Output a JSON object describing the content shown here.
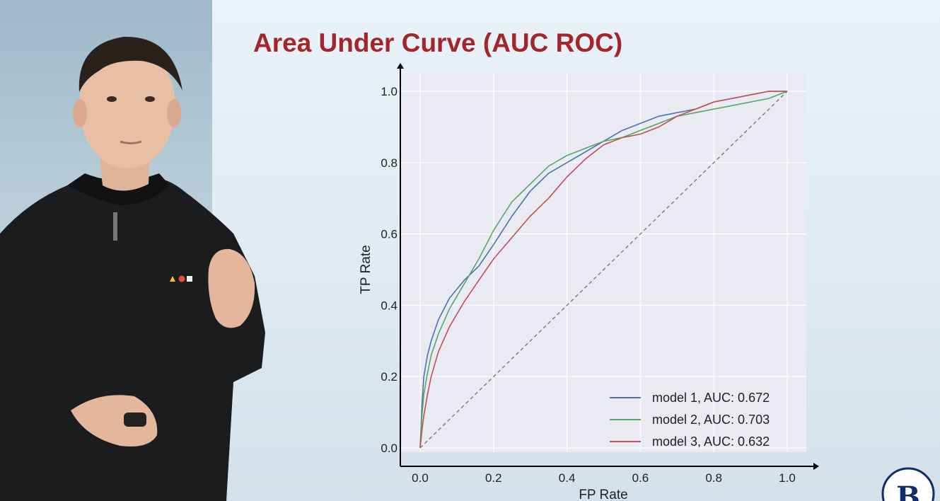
{
  "slide": {
    "title": "Area Under Curve (AUC ROC)"
  },
  "colors": {
    "title": "#a3262b",
    "plot_background": "#eaeaf2",
    "model1": "#4c72b0",
    "model2": "#55a868",
    "model3": "#c44e52",
    "diagonal": "#808080"
  },
  "chart_data": {
    "type": "line",
    "xlabel": "FP Rate",
    "ylabel": "TP Rate",
    "xlim": [
      0,
      1
    ],
    "ylim": [
      0,
      1
    ],
    "xticks": [
      "0.0",
      "0.2",
      "0.4",
      "0.6",
      "0.8",
      "1.0"
    ],
    "yticks": [
      "0.0",
      "0.2",
      "0.4",
      "0.6",
      "0.8",
      "1.0"
    ],
    "grid": true,
    "legend": "bottom-right",
    "series": [
      {
        "name": "model 1, AUC: 0.672",
        "color": "#4c72b0",
        "x": [
          0,
          0.005,
          0.01,
          0.02,
          0.03,
          0.05,
          0.08,
          0.12,
          0.16,
          0.2,
          0.25,
          0.3,
          0.35,
          0.4,
          0.45,
          0.5,
          0.55,
          0.6,
          0.65,
          0.7,
          0.75,
          0.8,
          0.85,
          0.9,
          0.95,
          1.0
        ],
        "y": [
          0,
          0.12,
          0.2,
          0.26,
          0.3,
          0.36,
          0.42,
          0.47,
          0.51,
          0.57,
          0.65,
          0.72,
          0.77,
          0.8,
          0.83,
          0.86,
          0.89,
          0.91,
          0.93,
          0.94,
          0.95,
          0.97,
          0.98,
          0.99,
          1.0,
          1.0
        ]
      },
      {
        "name": "model 2, AUC: 0.703",
        "color": "#55a868",
        "x": [
          0,
          0.005,
          0.01,
          0.02,
          0.03,
          0.05,
          0.08,
          0.12,
          0.16,
          0.2,
          0.25,
          0.3,
          0.35,
          0.4,
          0.45,
          0.5,
          0.55,
          0.6,
          0.65,
          0.7,
          0.75,
          0.8,
          0.85,
          0.9,
          0.95,
          1.0
        ],
        "y": [
          0,
          0.09,
          0.15,
          0.21,
          0.26,
          0.32,
          0.39,
          0.46,
          0.53,
          0.61,
          0.69,
          0.74,
          0.79,
          0.82,
          0.84,
          0.86,
          0.87,
          0.89,
          0.91,
          0.93,
          0.94,
          0.95,
          0.96,
          0.97,
          0.98,
          1.0
        ]
      },
      {
        "name": "model 3, AUC: 0.632",
        "color": "#c44e52",
        "x": [
          0,
          0.005,
          0.01,
          0.02,
          0.03,
          0.05,
          0.08,
          0.12,
          0.16,
          0.2,
          0.25,
          0.3,
          0.35,
          0.4,
          0.45,
          0.5,
          0.55,
          0.6,
          0.65,
          0.7,
          0.75,
          0.8,
          0.85,
          0.9,
          0.95,
          1.0
        ],
        "y": [
          0,
          0.05,
          0.09,
          0.15,
          0.2,
          0.27,
          0.34,
          0.41,
          0.47,
          0.53,
          0.59,
          0.65,
          0.7,
          0.76,
          0.81,
          0.85,
          0.87,
          0.88,
          0.9,
          0.93,
          0.95,
          0.97,
          0.98,
          0.99,
          1.0,
          1.0
        ]
      }
    ],
    "reference_line": {
      "x": [
        0,
        1
      ],
      "y": [
        0,
        1
      ],
      "style": "dashed",
      "color": "#808080"
    }
  }
}
